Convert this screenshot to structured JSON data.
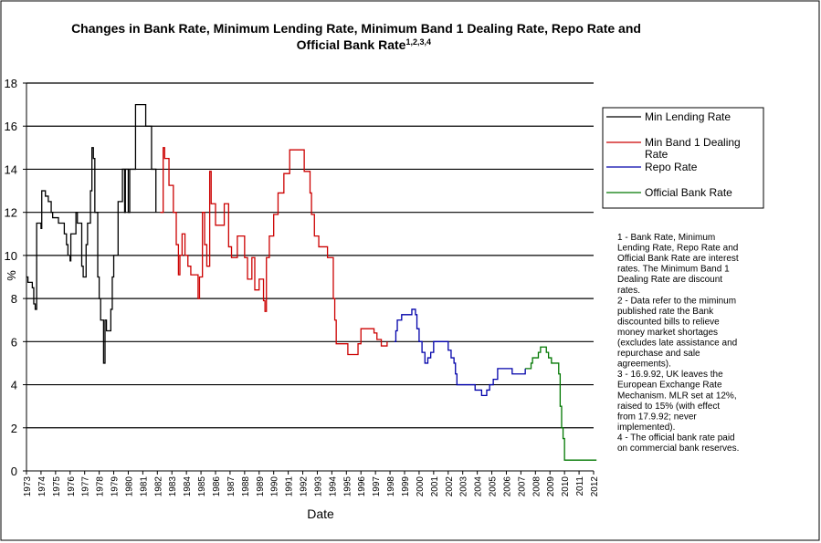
{
  "chart_data": {
    "type": "line",
    "title": "Changes in Bank Rate, Minimum Lending Rate, Minimum Band 1 Dealing Rate, Repo Rate and",
    "title_line2": "Official Bank Rate",
    "title_superscript": "1,2,3,4",
    "xlabel": "Date",
    "ylabel": "%",
    "xlim": [
      1973,
      2012
    ],
    "ylim": [
      0,
      18
    ],
    "yticks": [
      0,
      2,
      4,
      6,
      8,
      10,
      12,
      14,
      16,
      18
    ],
    "xticks": [
      1973,
      1974,
      1975,
      1976,
      1977,
      1978,
      1979,
      1980,
      1981,
      1982,
      1983,
      1984,
      1985,
      1986,
      1987,
      1988,
      1989,
      1990,
      1991,
      1992,
      1993,
      1994,
      1995,
      1996,
      1997,
      1998,
      1999,
      2000,
      2001,
      2002,
      2003,
      2004,
      2005,
      2006,
      2007,
      2008,
      2009,
      2010,
      2011,
      2012
    ],
    "grid": "horizontal",
    "legend_position": "right",
    "series": [
      {
        "name": "Min Lending Rate",
        "color": "#000000",
        "points": [
          [
            1973.0,
            9
          ],
          [
            1973.1,
            8.75
          ],
          [
            1973.4,
            8.5
          ],
          [
            1973.5,
            7.75
          ],
          [
            1973.6,
            7.5
          ],
          [
            1973.7,
            11.5
          ],
          [
            1974.0,
            11.25
          ],
          [
            1974.05,
            13
          ],
          [
            1974.3,
            12.75
          ],
          [
            1974.5,
            12.5
          ],
          [
            1974.7,
            12
          ],
          [
            1974.8,
            11.75
          ],
          [
            1975.2,
            11.5
          ],
          [
            1975.6,
            11
          ],
          [
            1975.75,
            10.5
          ],
          [
            1975.85,
            10
          ],
          [
            1976.0,
            9.75
          ],
          [
            1976.05,
            11
          ],
          [
            1976.4,
            12
          ],
          [
            1976.5,
            11.5
          ],
          [
            1976.8,
            9.5
          ],
          [
            1976.9,
            9
          ],
          [
            1977.1,
            10.5
          ],
          [
            1977.2,
            11.5
          ],
          [
            1977.4,
            13
          ],
          [
            1977.5,
            15
          ],
          [
            1977.6,
            14.5
          ],
          [
            1977.7,
            12
          ],
          [
            1977.9,
            9
          ],
          [
            1978.0,
            8
          ],
          [
            1978.1,
            7
          ],
          [
            1978.3,
            5
          ],
          [
            1978.4,
            7
          ],
          [
            1978.5,
            6.5
          ],
          [
            1978.8,
            7.5
          ],
          [
            1978.9,
            9
          ],
          [
            1979.0,
            10
          ],
          [
            1979.3,
            12.5
          ],
          [
            1979.6,
            14
          ],
          [
            1979.75,
            12
          ],
          [
            1979.8,
            14
          ],
          [
            1980.0,
            12
          ],
          [
            1980.1,
            14
          ],
          [
            1980.5,
            17
          ],
          [
            1981.2,
            16
          ],
          [
            1981.6,
            14
          ],
          [
            1981.9,
            12
          ]
        ]
      },
      {
        "name": "Min Band 1 Dealing Rate",
        "color": "#cc0000",
        "points": [
          [
            1982.2,
            12
          ],
          [
            1982.4,
            15
          ],
          [
            1982.5,
            14.5
          ],
          [
            1982.8,
            13.25
          ],
          [
            1983.1,
            12
          ],
          [
            1983.3,
            10.5
          ],
          [
            1983.45,
            9.1
          ],
          [
            1983.55,
            10
          ],
          [
            1983.7,
            11
          ],
          [
            1983.9,
            10
          ],
          [
            1984.1,
            9.5
          ],
          [
            1984.3,
            9.1
          ],
          [
            1984.8,
            8
          ],
          [
            1984.9,
            9
          ],
          [
            1985.1,
            12
          ],
          [
            1985.25,
            10.5
          ],
          [
            1985.4,
            9.5
          ],
          [
            1985.6,
            13.9
          ],
          [
            1985.7,
            12.4
          ],
          [
            1986.0,
            11.4
          ],
          [
            1986.6,
            12.4
          ],
          [
            1986.9,
            10.4
          ],
          [
            1987.1,
            9.9
          ],
          [
            1987.5,
            10.9
          ],
          [
            1988.0,
            9.9
          ],
          [
            1988.2,
            8.9
          ],
          [
            1988.5,
            9.9
          ],
          [
            1988.7,
            8.4
          ],
          [
            1989.0,
            8.9
          ],
          [
            1989.3,
            7.9
          ],
          [
            1989.4,
            7.4
          ],
          [
            1989.5,
            9.9
          ],
          [
            1989.7,
            10.9
          ],
          [
            1990.0,
            11.9
          ],
          [
            1990.3,
            12.9
          ],
          [
            1990.7,
            13.8
          ],
          [
            1991.1,
            14.9
          ],
          [
            1992.1,
            13.9
          ],
          [
            1992.5,
            12.9
          ],
          [
            1992.6,
            11.9
          ],
          [
            1992.8,
            10.9
          ],
          [
            1993.1,
            10.4
          ],
          [
            1993.7,
            9.9
          ],
          [
            1994.1,
            8
          ],
          [
            1994.2,
            7
          ],
          [
            1994.3,
            5.9
          ],
          [
            1995.1,
            5.4
          ],
          [
            1995.8,
            5.9
          ],
          [
            1996.0,
            6.6
          ],
          [
            1996.9,
            6.4
          ],
          [
            1997.1,
            6.1
          ],
          [
            1997.4,
            5.8
          ],
          [
            1997.8,
            6
          ]
        ]
      },
      {
        "name": "Repo Rate",
        "color": "#0000aa",
        "points": [
          [
            1998.3,
            6
          ],
          [
            1998.4,
            6.5
          ],
          [
            1998.5,
            7
          ],
          [
            1998.8,
            7.25
          ],
          [
            1999.5,
            7.5
          ],
          [
            1999.75,
            7.25
          ],
          [
            1999.85,
            6.6
          ],
          [
            2000.0,
            6
          ],
          [
            2000.2,
            5.5
          ],
          [
            2000.4,
            5
          ],
          [
            2000.6,
            5.25
          ],
          [
            2000.8,
            5.5
          ],
          [
            2001.0,
            6
          ],
          [
            2002.0,
            5.6
          ],
          [
            2002.2,
            5.25
          ],
          [
            2002.4,
            5
          ],
          [
            2002.5,
            4.5
          ],
          [
            2002.6,
            4
          ],
          [
            2003.85,
            3.75
          ],
          [
            2004.3,
            3.5
          ],
          [
            2004.65,
            3.75
          ],
          [
            2004.85,
            4
          ],
          [
            2005.1,
            4.25
          ],
          [
            2005.4,
            4.75
          ],
          [
            2006.4,
            4.5
          ],
          [
            2007.3,
            4.75
          ]
        ]
      },
      {
        "name": "Official Bank Rate",
        "color": "#007700",
        "points": [
          [
            2007.3,
            4.75
          ],
          [
            2007.7,
            5
          ],
          [
            2007.8,
            5.25
          ],
          [
            2008.2,
            5.5
          ],
          [
            2008.35,
            5.75
          ],
          [
            2008.75,
            5.5
          ],
          [
            2008.9,
            5.25
          ],
          [
            2009.1,
            5
          ],
          [
            2009.6,
            4.5
          ],
          [
            2009.7,
            3
          ],
          [
            2009.8,
            2
          ],
          [
            2009.9,
            1.5
          ],
          [
            2010.0,
            0.5
          ],
          [
            2012.2,
            0.5
          ]
        ]
      }
    ],
    "notes": [
      "1 - Bank Rate, Minimum",
      "Lending Rate, Repo Rate and",
      "Official Bank Rate are interest",
      "rates.  The Minimum Band 1",
      "Dealing Rate are discount",
      "rates.",
      "2 - Data refer to the miminum",
      "published rate the Bank",
      "discounted bills to relieve",
      "money market shortages",
      "(excludes late assistance and",
      "repurchase and sale",
      "agreements).",
      "3 - 16.9.92, UK leaves the",
      "European Exchange Rate",
      "Mechanism.  MLR set at 12%,",
      "raised to 15% (with effect",
      "from 17.9.92; never",
      "implemented).",
      "4 - The official bank rate paid",
      "on commercial bank reserves."
    ],
    "legend": [
      {
        "label_lines": [
          "Min Lending Rate"
        ],
        "color": "#000000"
      },
      {
        "label_lines": [
          "Min Band 1 Dealing",
          "Rate"
        ],
        "color": "#cc0000"
      },
      {
        "label_lines": [
          "Repo Rate"
        ],
        "color": "#0000aa"
      },
      {
        "label_lines": [
          "Official Bank Rate"
        ],
        "color": "#007700"
      }
    ]
  }
}
